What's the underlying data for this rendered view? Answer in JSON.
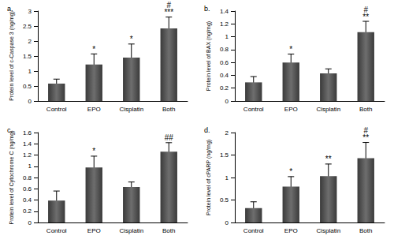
{
  "chart_data": [
    {
      "type": "bar",
      "title": "a.",
      "y_label": "Protein level of c-Caspase 3 (ng/mg)",
      "categories": [
        "Control",
        "EPO",
        "Cisplatin",
        "Both"
      ],
      "values": [
        0.58,
        1.22,
        1.45,
        2.42
      ],
      "errors": [
        0.15,
        0.35,
        0.45,
        0.38
      ],
      "annotations": [
        [],
        [
          "*"
        ],
        [
          "*"
        ],
        [
          "#",
          "***"
        ]
      ],
      "color": "#3a3a3a",
      "ylim": [
        0,
        3
      ],
      "yticks": [
        0,
        0.5,
        1,
        1.5,
        2,
        2.5,
        3
      ],
      "grid": false
    },
    {
      "type": "bar",
      "title": "b.",
      "y_label": "Protein level of BAX (ng/mg)",
      "categories": [
        "Control",
        "EPO",
        "Cisplatin",
        "Both"
      ],
      "values": [
        0.29,
        0.6,
        0.43,
        1.07
      ],
      "errors": [
        0.09,
        0.13,
        0.07,
        0.17
      ],
      "annotations": [
        [],
        [
          "*"
        ],
        [],
        [
          "#",
          "**"
        ]
      ],
      "color": "#3a3a3a",
      "ylim": [
        0,
        1.4
      ],
      "yticks": [
        0,
        0.2,
        0.4,
        0.6,
        0.8,
        1,
        1.2,
        1.4
      ],
      "grid": false
    },
    {
      "type": "bar",
      "title": "c.",
      "y_label": "Protein level of Cytochrome C (ng/mg)",
      "categories": [
        "Control",
        "EPO",
        "Cisplatin",
        "Both"
      ],
      "values": [
        0.39,
        0.98,
        0.63,
        1.26
      ],
      "errors": [
        0.17,
        0.2,
        0.09,
        0.16
      ],
      "annotations": [
        [],
        [
          "*"
        ],
        [],
        [
          "##"
        ]
      ],
      "color": "#3a3a3a",
      "ylim": [
        0,
        1.6
      ],
      "yticks": [
        0,
        0.2,
        0.4,
        0.6,
        0.8,
        1,
        1.2,
        1.4,
        1.6
      ],
      "grid": false
    },
    {
      "type": "bar",
      "title": "d.",
      "y_label": "Protein level of cPARP (ng/mg)",
      "categories": [
        "Control",
        "EPO",
        "Cisplatin",
        "Both"
      ],
      "values": [
        0.32,
        0.8,
        1.03,
        1.43
      ],
      "errors": [
        0.14,
        0.22,
        0.27,
        0.35
      ],
      "annotations": [
        [],
        [
          "*"
        ],
        [
          "**"
        ],
        [
          "#",
          "**"
        ]
      ],
      "color": "#3a3a3a",
      "ylim": [
        0,
        2
      ],
      "yticks": [
        0,
        0.5,
        1,
        1.5,
        2
      ],
      "grid": false
    }
  ]
}
